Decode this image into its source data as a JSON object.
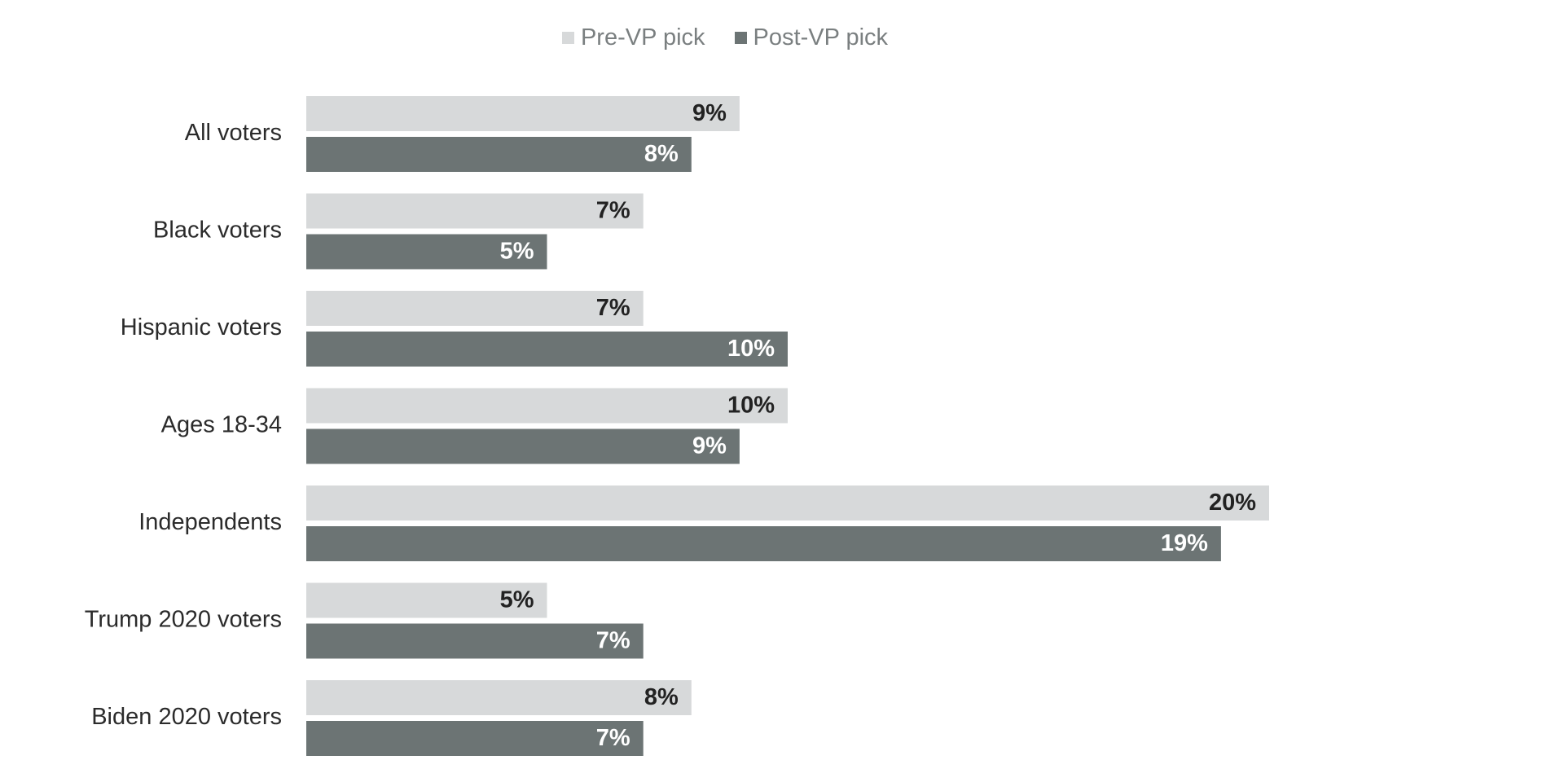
{
  "chart_data": {
    "type": "bar",
    "orientation": "horizontal",
    "categories": [
      "All voters",
      "Black voters",
      "Hispanic voters",
      "Ages 18-34",
      "Independents",
      "Trump 2020 voters",
      "Biden 2020 voters"
    ],
    "series": [
      {
        "name": "Pre-VP pick",
        "values": [
          9,
          7,
          7,
          10,
          20,
          5,
          8
        ],
        "color": "#d7d9da",
        "label_color": "#222222"
      },
      {
        "name": "Post-VP pick",
        "values": [
          8,
          5,
          10,
          9,
          19,
          7,
          7
        ],
        "color": "#6c7474",
        "label_color": "#ffffff"
      }
    ],
    "value_format": "{v}%",
    "xlim": [
      0,
      25
    ],
    "legend_position": "top-center",
    "grid": false
  }
}
